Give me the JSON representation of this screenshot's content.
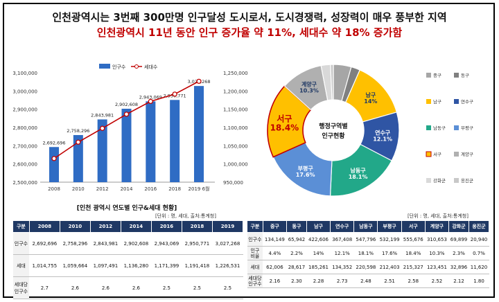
{
  "headline": {
    "line1": "인천광역시는 3번째  300만명 인구달성 도시로서, 도시경쟁력, 성장력이 매우 풍부한 지역",
    "line2": "인천광역시 11년 동안 인구 증가율 약 11%, 세대수 약 18% 증가함"
  },
  "colors": {
    "bar": "#2f6cc4",
    "line": "#c00000",
    "header": "#1f3864",
    "title_red": "#c00000"
  },
  "chart_data": [
    {
      "type": "bar+line",
      "categories": [
        "2008",
        "2010",
        "2012",
        "2014",
        "2016",
        "2018",
        "2019 6월"
      ],
      "series": [
        {
          "name": "인구수",
          "type": "bar",
          "axis": "left",
          "values": [
            2692696,
            2758296,
            2843981,
            2902608,
            2943069,
            2950771,
            3027268
          ],
          "labels": [
            "2,692,696",
            "2,758,296",
            "2,843,981",
            "2,902,608",
            "2,943,069",
            "2,950,771",
            "3,027,268"
          ]
        },
        {
          "name": "세대수",
          "type": "line",
          "axis": "right",
          "values": [
            1014755,
            1059664,
            1097491,
            1136280,
            1171399,
            1191418,
            1226531
          ]
        }
      ],
      "y_left": {
        "min": 2500000,
        "max": 3100000,
        "ticks": [
          "2,500,000",
          "2,600,000",
          "2,700,000",
          "2,800,000",
          "2,900,000",
          "3,000,000",
          "3,100,000"
        ]
      },
      "y_right": {
        "min": 950000,
        "max": 1250000,
        "ticks": [
          "950,000",
          "1,000,000",
          "1,050,000",
          "1,100,000",
          "1,150,000",
          "1,200,000",
          "1,250,000"
        ]
      },
      "caption": "[인천 광역시 연도별 인구&세대 현황]"
    },
    {
      "type": "pie",
      "center_label": [
        "행정구역별",
        "인구현황"
      ],
      "slices": [
        {
          "name": "중구",
          "value": 4.4,
          "color": "#a6a6a6"
        },
        {
          "name": "동구",
          "value": 2.2,
          "color": "#808080"
        },
        {
          "name": "남구",
          "value": 14,
          "color": "#ffc000",
          "label": [
            "남구",
            "14%"
          ]
        },
        {
          "name": "연수구",
          "value": 12.1,
          "color": "#2f55a4",
          "label": [
            "연수구",
            "12.1%"
          ]
        },
        {
          "name": "남동구",
          "value": 18.1,
          "color": "#22a889",
          "label": [
            "남동구",
            "18.1%"
          ]
        },
        {
          "name": "부평구",
          "value": 17.6,
          "color": "#5b8fd6",
          "label": [
            "부평구",
            "17.6%"
          ]
        },
        {
          "name": "서구",
          "value": 18.4,
          "color": "#ffc000",
          "label": [
            "서구",
            "18.4%"
          ],
          "highlight": true
        },
        {
          "name": "계양구",
          "value": 10.3,
          "color": "#b0b0b0",
          "label": [
            "계양구",
            "10.3%"
          ]
        },
        {
          "name": "강화군",
          "value": 2.3,
          "color": "#d9d9d9"
        },
        {
          "name": "옹진군",
          "value": 0.7,
          "color": "#c8c8c8"
        }
      ],
      "legend": [
        "중구",
        "동구",
        "남구",
        "연수구",
        "남동구",
        "부평구",
        "서구",
        "계양구",
        "강화군",
        "옹진군"
      ]
    }
  ],
  "table1": {
    "unit": "[단위 : 명, 세대, 출처:통계청]",
    "headers": [
      "구분",
      "2008",
      "2010",
      "2012",
      "2014",
      "2016",
      "2018",
      "2019"
    ],
    "rows": [
      [
        "인구수",
        "2,692,696",
        "2,758,296",
        "2,843,981",
        "2,902,608",
        "2,943,069",
        "2,950,771",
        "3,027,268"
      ],
      [
        "세대",
        "1,014,755",
        "1,059,664",
        "1,097,491",
        "1,136,280",
        "1,171,399",
        "1,191,418",
        "1,226,531"
      ],
      [
        "세대당\n인구수",
        "2.7",
        "2.6",
        "2.6",
        "2.6",
        "2.5",
        "2.5",
        "2.5"
      ]
    ]
  },
  "table2": {
    "unit": "[단위 : 명, 세대, 출처:통계청]",
    "headers": [
      "구분",
      "중구",
      "동구",
      "남구",
      "연수구",
      "남동구",
      "부평구",
      "서구",
      "계양구",
      "강화군",
      "옹진군"
    ],
    "rows": [
      [
        "인구수",
        "134,149",
        "65,942",
        "422,606",
        "367,408",
        "547,796",
        "532,199",
        "555,676",
        "310,653",
        "69,899",
        "20,940"
      ],
      [
        "인구\n비율",
        "4.4%",
        "2.2%",
        "14%",
        "12.1%",
        "18.1%",
        "17.6%",
        "18.4%",
        "10.3%",
        "2.3%",
        "0.7%"
      ],
      [
        "세대",
        "62,006",
        "28,617",
        "185,261",
        "134,352",
        "220,598",
        "212,403",
        "215,327",
        "123,451",
        "32,896",
        "11,620"
      ],
      [
        "세대당\n인구수",
        "2.16",
        "2.30",
        "2.28",
        "2.73",
        "2.48",
        "2.51",
        "2.58",
        "2.52",
        "2.12",
        "1.80"
      ]
    ]
  }
}
